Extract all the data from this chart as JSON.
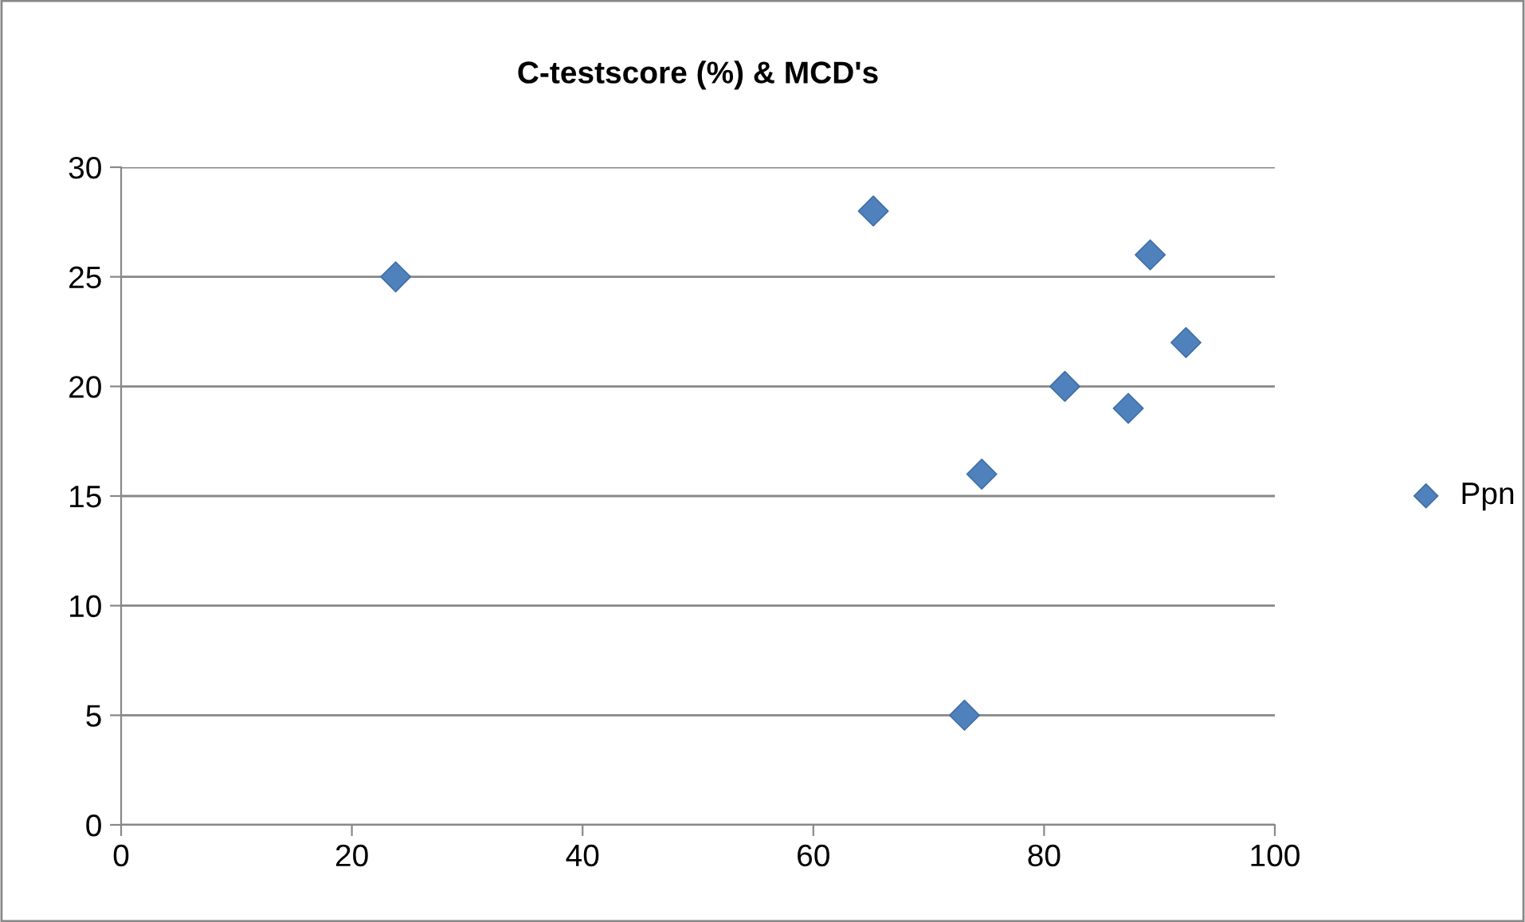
{
  "chart_data": {
    "type": "scatter",
    "title": "C-testscore (%) & MCD's",
    "series": [
      {
        "name": "Ppn",
        "color": "#4f81bd",
        "x": [
          23.8,
          65.2,
          89.2,
          92.3,
          81.8,
          87.3,
          74.6,
          73.1
        ],
        "values": [
          25,
          28,
          26,
          22,
          20,
          19,
          16,
          5
        ]
      }
    ],
    "xlim": [
      0,
      100
    ],
    "xticks": [
      0,
      20,
      40,
      60,
      80,
      100
    ],
    "ylim": [
      0,
      30
    ],
    "yticks": [
      0,
      5,
      10,
      15,
      20,
      25,
      30
    ],
    "grid": "y",
    "legend": "right",
    "marker": "diamond"
  }
}
